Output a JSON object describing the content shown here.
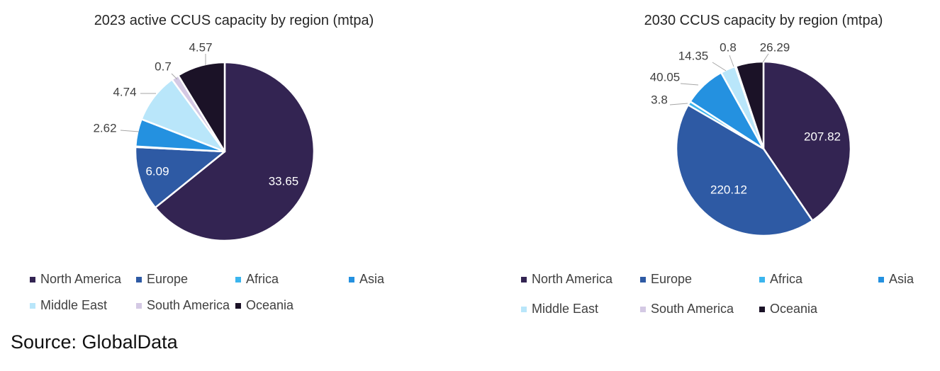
{
  "chart_data": [
    {
      "type": "pie",
      "title": "2023 active CCUS capacity by region (mtpa)",
      "slices": [
        {
          "label": "North America",
          "value": 33.65,
          "display": "33.65",
          "color": "#332452"
        },
        {
          "label": "Europe",
          "value": 6.09,
          "display": "6.09",
          "color": "#2e5aa4"
        },
        {
          "label": "Africa",
          "value": 0.06,
          "display": "",
          "color": "#3bb5ee"
        },
        {
          "label": "Asia",
          "value": 2.62,
          "display": "2.62",
          "color": "#2491e0"
        },
        {
          "label": "Middle East",
          "value": 4.74,
          "display": "4.74",
          "color": "#b9e6fa"
        },
        {
          "label": "South America",
          "value": 0.7,
          "display": "0.7",
          "color": "#d4c9e4"
        },
        {
          "label": "Oceania",
          "value": 4.57,
          "display": "4.57",
          "color": "#1b1227"
        }
      ],
      "legend": [
        "North America",
        "Europe",
        "Africa",
        "Asia",
        "Middle East",
        "South America",
        "Oceania"
      ]
    },
    {
      "type": "pie",
      "title": "2030 CCUS capacity by region (mtpa)",
      "slices": [
        {
          "label": "North America",
          "value": 207.82,
          "display": "207.82",
          "color": "#332452"
        },
        {
          "label": "Europe",
          "value": 220.12,
          "display": "220.12",
          "color": "#2e5aa4"
        },
        {
          "label": "Africa",
          "value": 3.8,
          "display": "3.8",
          "color": "#3bb5ee"
        },
        {
          "label": "Asia",
          "value": 40.05,
          "display": "40.05",
          "color": "#2491e0"
        },
        {
          "label": "Middle East",
          "value": 14.35,
          "display": "14.35",
          "color": "#b9e6fa"
        },
        {
          "label": "South America",
          "value": 0.8,
          "display": "0.8",
          "color": "#d4c9e4"
        },
        {
          "label": "Oceania",
          "value": 26.29,
          "display": "26.29",
          "color": "#1b1227"
        }
      ],
      "legend": [
        "North America",
        "Europe",
        "Africa",
        "Asia",
        "Middle East",
        "South America",
        "Oceania"
      ]
    }
  ],
  "source": "Source: GlobalData"
}
